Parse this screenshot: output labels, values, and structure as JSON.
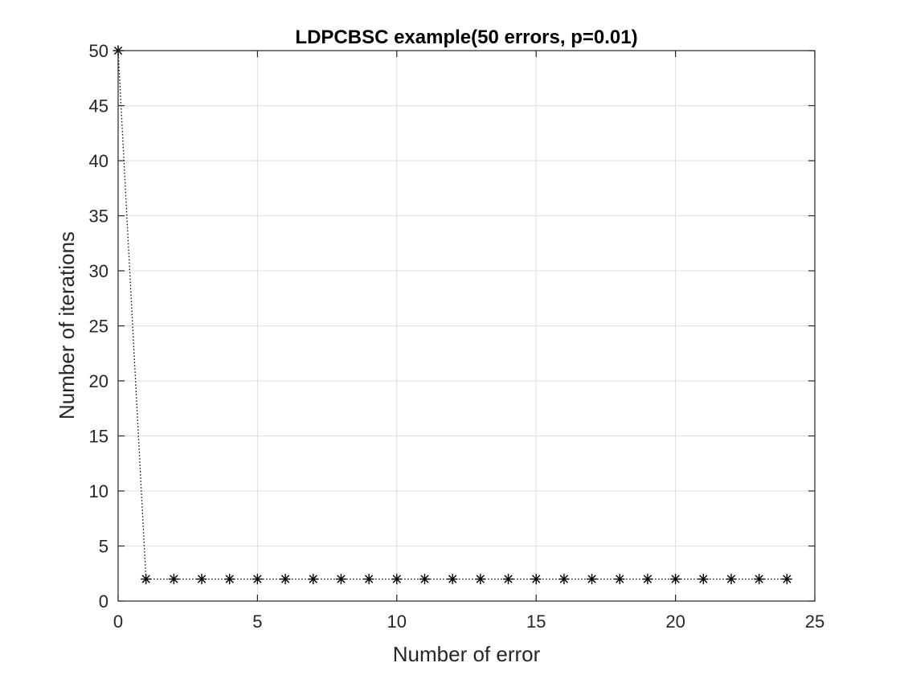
{
  "chart_data": {
    "type": "line",
    "title": "LDPCBSC example(50 errors, p=0.01)",
    "xlabel": "Number of error",
    "ylabel": "Number of iterations",
    "xlim": [
      0,
      25
    ],
    "ylim": [
      0,
      50
    ],
    "xticks": [
      "0",
      "5",
      "10",
      "15",
      "20",
      "25"
    ],
    "yticks": [
      "0",
      "5",
      "10",
      "15",
      "20",
      "25",
      "30",
      "35",
      "40",
      "45",
      "50"
    ],
    "grid": true,
    "legend": "none",
    "series": [
      {
        "marker": "asterisk",
        "line_style": "dotted",
        "color": "#000000",
        "x": [
          0,
          1,
          2,
          3,
          4,
          5,
          6,
          7,
          8,
          9,
          10,
          11,
          12,
          13,
          14,
          15,
          16,
          17,
          18,
          19,
          20,
          21,
          22,
          23,
          24
        ],
        "y": [
          50,
          2,
          2,
          2,
          2,
          2,
          2,
          2,
          2,
          2,
          2,
          2,
          2,
          2,
          2,
          2,
          2,
          2,
          2,
          2,
          2,
          2,
          2,
          2,
          2
        ]
      }
    ]
  }
}
